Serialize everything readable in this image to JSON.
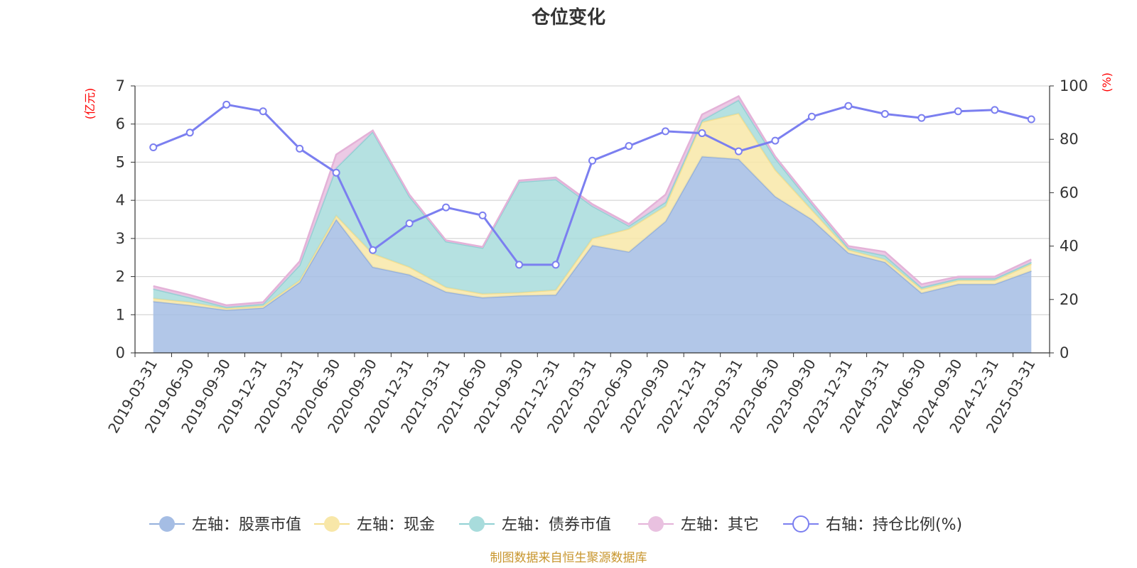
{
  "chart_data": {
    "type": "area",
    "title": "仓位变化",
    "left_axis": {
      "unit": "(亿元)",
      "ylim": [
        0,
        7
      ],
      "ticks": [
        0,
        1,
        2,
        3,
        4,
        5,
        6,
        7
      ]
    },
    "right_axis": {
      "unit": "(%)",
      "ylim": [
        0,
        100
      ],
      "ticks": [
        0,
        20,
        40,
        60,
        80,
        100
      ]
    },
    "categories": [
      "2019-03-31",
      "2019-06-30",
      "2019-09-30",
      "2019-12-31",
      "2020-03-31",
      "2020-06-30",
      "2020-09-30",
      "2020-12-31",
      "2021-03-31",
      "2021-06-30",
      "2021-09-30",
      "2021-12-31",
      "2022-03-31",
      "2022-06-30",
      "2022-09-30",
      "2022-12-31",
      "2023-03-31",
      "2023-06-30",
      "2023-09-30",
      "2023-12-31",
      "2024-03-31",
      "2024-06-30",
      "2024-09-30",
      "2024-12-31",
      "2025-03-31"
    ],
    "stacked_series": [
      {
        "name": "左轴：股票市值",
        "axis": "left",
        "color": "#a5bde4",
        "line": "#94b0dc",
        "values": [
          1.35,
          1.25,
          1.12,
          1.18,
          1.85,
          3.5,
          2.25,
          2.05,
          1.6,
          1.45,
          1.5,
          1.52,
          2.82,
          2.65,
          3.45,
          5.15,
          5.08,
          4.1,
          3.5,
          2.62,
          2.38,
          1.57,
          1.8,
          1.8,
          2.15
        ]
      },
      {
        "name": "左轴：现金",
        "axis": "left",
        "color": "#f8e7a8",
        "line": "#f5df90",
        "values": [
          0.08,
          0.08,
          0.05,
          0.05,
          0.05,
          0.1,
          0.35,
          0.2,
          0.12,
          0.1,
          0.08,
          0.13,
          0.18,
          0.6,
          0.4,
          0.9,
          1.2,
          0.7,
          0.25,
          0.08,
          0.07,
          0.1,
          0.1,
          0.1,
          0.18
        ]
      },
      {
        "name": "左轴：债券市值",
        "axis": "left",
        "color": "#a8dcdc",
        "line": "#90d0d3",
        "values": [
          0.25,
          0.12,
          0.03,
          0.05,
          0.4,
          1.25,
          3.2,
          1.85,
          1.2,
          1.2,
          2.9,
          2.9,
          0.85,
          0.08,
          0.1,
          0.05,
          0.35,
          0.3,
          0.15,
          0.05,
          0.1,
          0.05,
          0.05,
          0.05,
          0.05
        ]
      },
      {
        "name": "左轴：其它",
        "axis": "left",
        "color": "#e9c1e0",
        "line": "#e4b2d8",
        "values": [
          0.07,
          0.07,
          0.05,
          0.05,
          0.1,
          0.35,
          0.03,
          0.05,
          0.03,
          0.03,
          0.04,
          0.05,
          0.05,
          0.05,
          0.2,
          0.15,
          0.1,
          0.05,
          0.05,
          0.05,
          0.1,
          0.08,
          0.05,
          0.05,
          0.07
        ]
      }
    ],
    "line_series": [
      {
        "name": "右轴：持仓比例(%)",
        "axis": "right",
        "color": "#7b7ff0",
        "values": [
          77,
          82.5,
          93,
          90.5,
          76.5,
          67.5,
          38.5,
          48.5,
          54.5,
          51.5,
          33,
          33,
          72,
          77.5,
          83,
          82.3,
          75.5,
          79.5,
          88.5,
          92.5,
          89.5,
          88,
          90.5,
          91,
          87.5
        ]
      }
    ],
    "legend_position": "bottom",
    "grid": true
  },
  "source_note": "制图数据来自恒生聚源数据库",
  "source_color": "#c8962e",
  "axis_unit_color": "#ff0000"
}
